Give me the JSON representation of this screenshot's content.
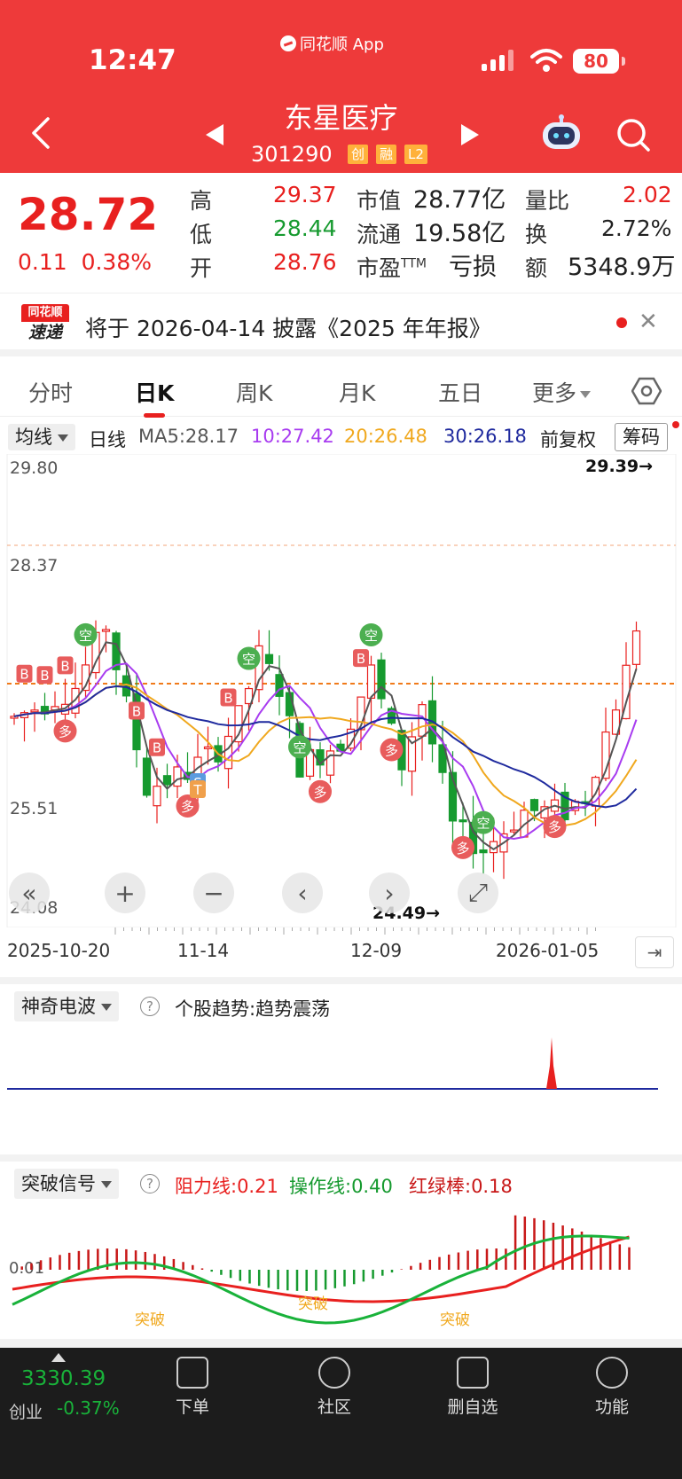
{
  "status_bar": {
    "time": "12:47",
    "app_label": "同花顺 App",
    "battery": "80"
  },
  "header": {
    "name": "东星医疗",
    "code": "301290",
    "tags": [
      "创",
      "融",
      "L2"
    ]
  },
  "quote": {
    "price": "28.72",
    "change": "0.11",
    "change_pct": "0.38%",
    "labels": {
      "high": "高",
      "low": "低",
      "open": "开",
      "mcap": "市值",
      "float": "流通",
      "pe": "市盈",
      "pe_sup": "TTM",
      "vol_ratio": "量比",
      "turnover": "换",
      "amount": "额"
    },
    "high": "29.37",
    "low": "28.44",
    "open": "28.76",
    "mcap": "28.77亿",
    "float": "19.58亿",
    "pe": "亏损",
    "vol_ratio": "2.02",
    "turnover": "2.72%",
    "amount": "5348.9万"
  },
  "notice": {
    "logo_top": "同花顺",
    "logo_bottom": "速递",
    "text": "将于 2026-04-14 披露《2025 年年报》"
  },
  "tabs": [
    "分时",
    "日K",
    "周K",
    "月K",
    "五日",
    "更多"
  ],
  "ma_bar": {
    "select": "均线",
    "period": "日线",
    "ma5": "MA5:28.17",
    "ma10": "10:27.42",
    "ma20": "20:26.48",
    "ma30": "30:26.18",
    "adjust": "前复权",
    "chip": "筹码"
  },
  "chart": {
    "y_labels": [
      "29.80",
      "28.37",
      "25.51",
      "24.08"
    ],
    "high_mark": "29.39→",
    "low_mark": "24.49→",
    "x_labels": [
      "2025-10-20",
      "11-14",
      "12-09",
      "2026-01-05"
    ],
    "ctrl_buttons": [
      "«",
      "+",
      "−",
      "‹",
      "›",
      "⤢"
    ],
    "markers": [
      {
        "t": "B",
        "c": "#e85c5c"
      },
      {
        "t": "空",
        "c": "#4caf50"
      },
      {
        "t": "多",
        "c": "#e85c5c"
      },
      {
        "t": "S",
        "c": "#5b9bdf"
      },
      {
        "t": "T",
        "c": "#f0a04b"
      }
    ]
  },
  "panel1": {
    "select": "神奇电波",
    "help": "?",
    "label": "个股趋势:",
    "value": "趋势震荡"
  },
  "panel2": {
    "select": "突破信号",
    "help": "?",
    "resist": "阻力线:0.21",
    "op": "操作线:0.40",
    "rg": "红绿棒:0.18",
    "y_label": "0.01",
    "breakout": "突破"
  },
  "bottom_nav": {
    "index_value": "3330.39",
    "index_name": "创业",
    "index_change": "-0.37%",
    "items": [
      "下单",
      "社区",
      "删自选",
      "功能"
    ]
  },
  "colors": {
    "brand_red": "#ee3a3a",
    "up_red": "#e8201f",
    "down_green": "#169a2f",
    "ma5": "#555555",
    "ma10": "#a83cf0",
    "ma20": "#f0a81e",
    "ma30": "#1f2a9e"
  }
}
